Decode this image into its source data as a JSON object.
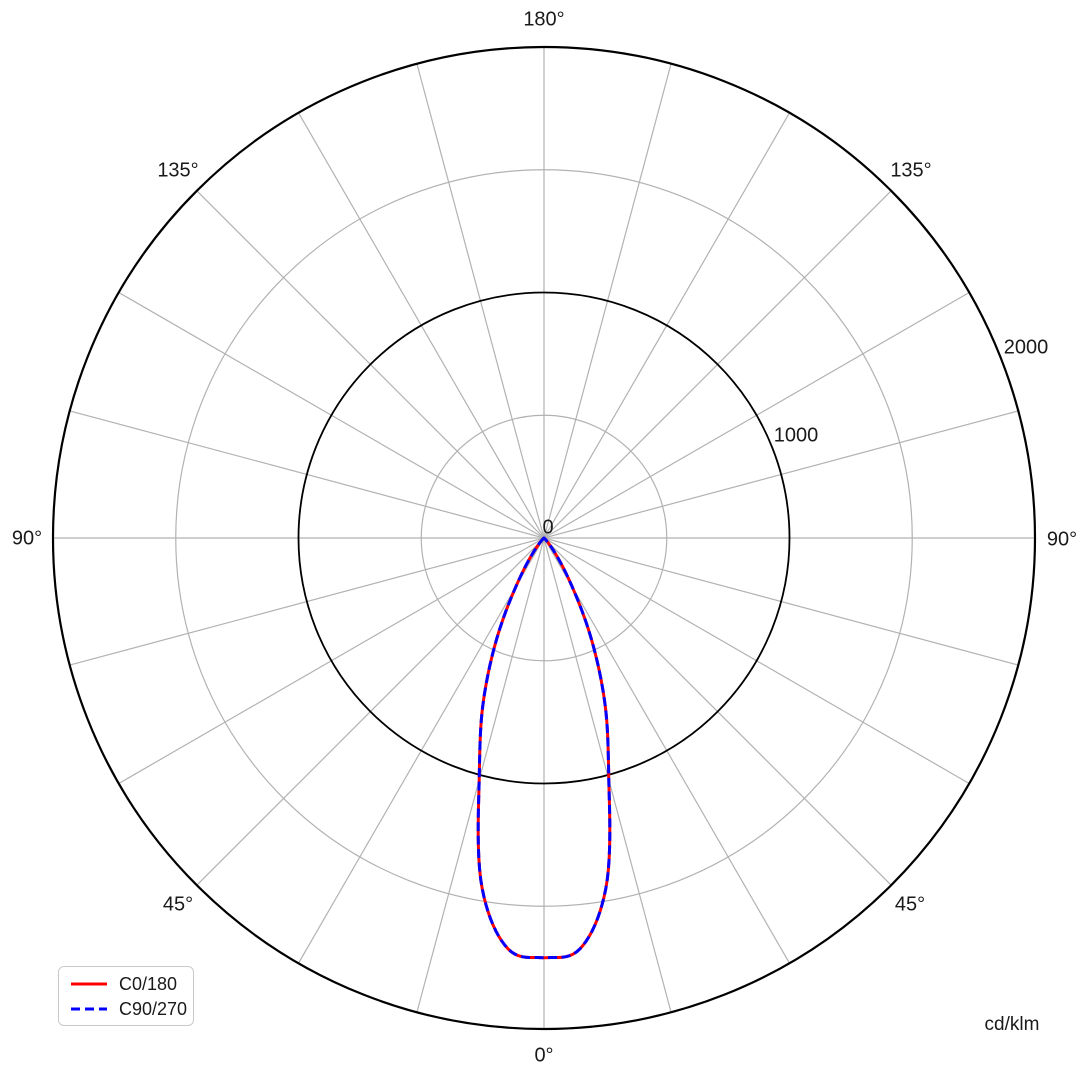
{
  "colors": {
    "background": "#ffffff",
    "grid": "#b2b2b2",
    "axis": "#000000",
    "text": "#1a1a1a",
    "legend_border": "#c9c9c9",
    "c0_180": "#ff0000",
    "c90_270": "#0000ff"
  },
  "chart_data": {
    "type": "polar_photometric",
    "title": "",
    "unit": "cd/klm",
    "orientation": "0deg-at-bottom, 180deg-at-top, symmetric-left-right",
    "angle_grid_step_deg": 15,
    "angle_labels": [
      "0°",
      "45°",
      "90°",
      "135°",
      "180°"
    ],
    "r_axis": {
      "max": 2000,
      "major_circles": [
        1000,
        2000
      ],
      "minor_circles": [
        500,
        1500
      ],
      "tick_labels": [
        "0",
        "1000",
        "2000"
      ]
    },
    "series": [
      {
        "name": "C0/180",
        "color": "#ff0000",
        "dash": null,
        "angles_deg": [
          0,
          5,
          10,
          15,
          20,
          25,
          30,
          35,
          40,
          45,
          50,
          55,
          60,
          65,
          70,
          75,
          80,
          85,
          90
        ],
        "values_cd_per_klm": [
          1710,
          1680,
          1450,
          1020,
          730,
          460,
          230,
          100,
          35,
          10,
          4,
          2,
          1,
          0,
          0,
          0,
          0,
          0,
          0
        ]
      },
      {
        "name": "C90/270",
        "color": "#0000ff",
        "dash": [
          9,
          4.5
        ],
        "angles_deg": [
          0,
          5,
          10,
          15,
          20,
          25,
          30,
          35,
          40,
          45,
          50,
          55,
          60,
          65,
          70,
          75,
          80,
          85,
          90
        ],
        "values_cd_per_klm": [
          1710,
          1680,
          1450,
          1020,
          730,
          460,
          230,
          100,
          35,
          10,
          4,
          2,
          1,
          0,
          0,
          0,
          0,
          0,
          0
        ]
      }
    ]
  }
}
